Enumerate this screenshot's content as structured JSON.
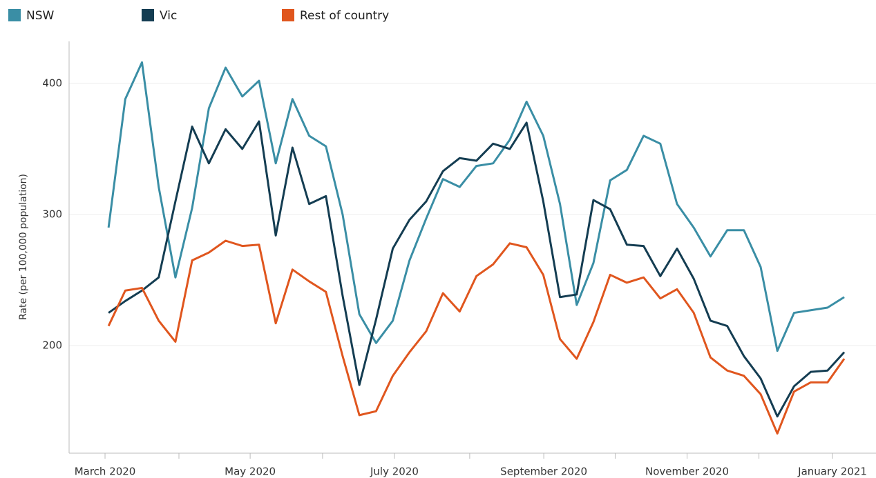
{
  "chart_data": {
    "type": "line",
    "y_label": "Rate (per 100,000 population)",
    "x": [
      0,
      1,
      2,
      3,
      4,
      5,
      6,
      7,
      8,
      9,
      10,
      11,
      12,
      13,
      14,
      15,
      16,
      17,
      18,
      19,
      20,
      21,
      22,
      23,
      24,
      25,
      26,
      27,
      28,
      29,
      30,
      31,
      32,
      33,
      34,
      35,
      36,
      37,
      38,
      39,
      40,
      41,
      42,
      43,
      44
    ],
    "xlim": [
      -2.36,
      45.9
    ],
    "xticks": [
      {
        "value": -0.21,
        "label": "March 2020"
      },
      {
        "value": 8.47,
        "label": "May 2020"
      },
      {
        "value": 17.1,
        "label": "July 2020"
      },
      {
        "value": 26.03,
        "label": "September 2020"
      },
      {
        "value": 34.6,
        "label": "November 2020"
      },
      {
        "value": 43.3,
        "label": "January 2021"
      }
    ],
    "minor_xticks": [
      4.21,
      12.8,
      21.6,
      30.3,
      38.9
    ],
    "ylim": [
      118,
      432
    ],
    "yticks": [
      200,
      300,
      400
    ],
    "grid": true,
    "legend": "top-left",
    "series": [
      {
        "name": "NSW",
        "color": "#3a8ea5",
        "values": [
          290,
          388,
          416,
          321,
          252,
          305,
          381,
          412,
          390,
          402,
          339,
          388,
          360,
          352,
          300,
          224,
          202,
          219,
          265,
          297,
          327,
          321,
          337,
          339,
          357,
          386,
          360,
          308,
          231,
          263,
          326,
          334,
          360,
          354,
          308,
          290,
          268,
          288,
          288,
          260,
          196,
          225,
          227,
          229,
          237
        ]
      },
      {
        "name": "Vic",
        "color": "#143d52",
        "values": [
          225,
          234,
          242,
          252,
          310,
          367,
          339,
          365,
          350,
          371,
          284,
          351,
          308,
          314,
          238,
          170,
          220,
          274,
          296,
          310,
          333,
          343,
          341,
          354,
          350,
          370,
          310,
          237,
          239,
          311,
          304,
          277,
          276,
          253,
          274,
          251,
          219,
          215,
          192,
          175,
          146,
          169,
          180,
          181,
          195
        ]
      },
      {
        "name": "Rest of country",
        "color": "#e0561e",
        "values": [
          215,
          242,
          244,
          219,
          203,
          265,
          271,
          280,
          276,
          277,
          217,
          258,
          249,
          241,
          192,
          147,
          150,
          177,
          195,
          211,
          240,
          226,
          253,
          262,
          278,
          275,
          254,
          205,
          190,
          218,
          254,
          248,
          252,
          236,
          243,
          225,
          191,
          181,
          177,
          163,
          133,
          165,
          172,
          172,
          190
        ]
      }
    ]
  }
}
